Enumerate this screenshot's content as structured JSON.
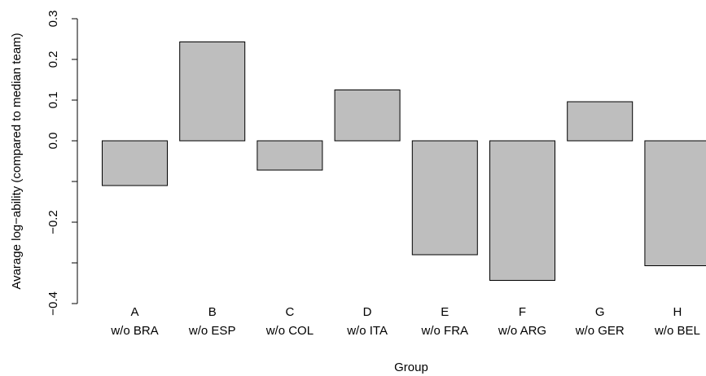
{
  "chart_data": {
    "type": "bar",
    "title": "",
    "xlabel": "Group",
    "ylabel": "Avarage log−ability (compared to median team)",
    "ylim": [
      -0.4,
      0.3
    ],
    "yticks": [
      {
        "value": -0.4,
        "label": "−0.4"
      },
      {
        "value": -0.3,
        "label": ""
      },
      {
        "value": -0.2,
        "label": "−0.2"
      },
      {
        "value": -0.1,
        "label": ""
      },
      {
        "value": 0.0,
        "label": "0.0"
      },
      {
        "value": 0.1,
        "label": "0.1"
      },
      {
        "value": 0.2,
        "label": "0.2"
      },
      {
        "value": 0.3,
        "label": "0.3"
      }
    ],
    "categories": [
      {
        "line1": "A",
        "line2": "w/o BRA"
      },
      {
        "line1": "B",
        "line2": "w/o ESP"
      },
      {
        "line1": "C",
        "line2": "w/o COL"
      },
      {
        "line1": "D",
        "line2": "w/o ITA"
      },
      {
        "line1": "E",
        "line2": "w/o FRA"
      },
      {
        "line1": "F",
        "line2": "w/o ARG"
      },
      {
        "line1": "G",
        "line2": "w/o GER"
      },
      {
        "line1": "H",
        "line2": "w/o BEL"
      }
    ],
    "values": [
      -0.11,
      0.243,
      -0.072,
      0.125,
      -0.28,
      -0.343,
      0.096,
      -0.307
    ],
    "bar_color": "#bebebe",
    "grid": false,
    "legend": "none"
  }
}
